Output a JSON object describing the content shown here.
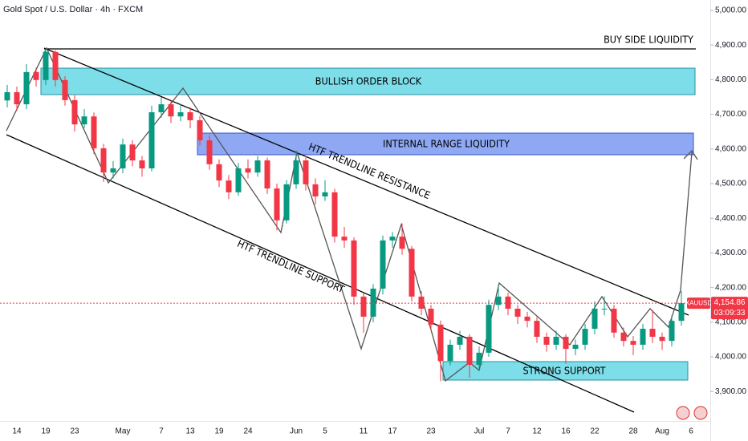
{
  "chart_data": {
    "type": "candlestick",
    "title": "Gold Spot / U.S. Dollar · 4h · FXCM",
    "symbol": "XAUUSD",
    "last_price": {
      "value": 4154.86,
      "label": "4,154.86"
    },
    "countdown": "03:09:33",
    "annotations": [
      "BUY SIDE LIQUIDITY",
      "BULLISH ORDER BLOCK",
      "INTERNAL RANGE LIQUIDITY",
      "HTF TRENDLINE RESISTANCE",
      "HTF TRENDLINE SUPPORT",
      "STRONG SUPPORT"
    ],
    "up_color": "#089981",
    "down_color": "#f23645",
    "categories": [
      null,
      "14",
      null,
      null,
      "19",
      null,
      null,
      "23",
      null,
      null,
      null,
      null,
      "May",
      null,
      null,
      null,
      "7",
      null,
      null,
      "13",
      null,
      null,
      "19",
      null,
      null,
      "24",
      null,
      null,
      null,
      null,
      "Jun",
      null,
      null,
      "5",
      null,
      null,
      null,
      "11",
      null,
      null,
      "17",
      null,
      null,
      null,
      "23",
      null,
      null,
      null,
      null,
      "Jul",
      null,
      null,
      "7",
      null,
      null,
      "12",
      null,
      null,
      "16",
      null,
      null,
      "22",
      null,
      null,
      null,
      "28",
      null,
      null,
      "Aug",
      null,
      null,
      "6"
    ],
    "open": [
      4740,
      4764,
      4729,
      4822,
      4799,
      4880,
      4799,
      4741,
      4671,
      4694,
      4602,
      4532,
      4544,
      4613,
      4567,
      4544,
      4706,
      4729,
      4694,
      4706,
      4683,
      4625,
      4556,
      4509,
      4475,
      4544,
      4532,
      4567,
      4486,
      4394,
      4498,
      4567,
      4498,
      4463,
      4475,
      4347,
      4336,
      4174,
      4116,
      4197,
      4336,
      4347,
      4312,
      4174,
      4139,
      4093,
      3988,
      4035,
      4058,
      3977,
      4012,
      4150,
      4174,
      4139,
      4116,
      4104,
      4058,
      4035,
      4058,
      4023,
      4035,
      4081,
      4139,
      4139,
      4070,
      4046,
      4035,
      4081,
      4058,
      4046,
      4104,
      null
    ],
    "high": [
      4785,
      4780,
      4845,
      4835,
      4890,
      4885,
      4810,
      4755,
      4715,
      4705,
      4615,
      4565,
      4630,
      4625,
      4580,
      4725,
      4750,
      4740,
      4730,
      4720,
      4695,
      4640,
      4570,
      4525,
      4560,
      4570,
      4580,
      4575,
      4500,
      4510,
      4590,
      4580,
      4515,
      4510,
      4485,
      4375,
      4345,
      4185,
      4210,
      4350,
      4360,
      4385,
      4320,
      4190,
      4150,
      4105,
      4050,
      4075,
      4065,
      4030,
      4165,
      4205,
      4185,
      4150,
      4130,
      4115,
      4070,
      4075,
      4065,
      4050,
      4095,
      4160,
      4175,
      4150,
      4085,
      4060,
      4095,
      4135,
      4070,
      4120,
      4190,
      null
    ],
    "low": [
      4720,
      4710,
      4715,
      4780,
      4785,
      4780,
      4725,
      4650,
      4660,
      4585,
      4505,
      4515,
      4530,
      4550,
      4520,
      4535,
      4690,
      4675,
      4680,
      4660,
      4610,
      4540,
      4490,
      4455,
      4465,
      4515,
      4520,
      4470,
      4365,
      4385,
      4485,
      4480,
      4440,
      4450,
      4330,
      4315,
      4150,
      4070,
      4100,
      4180,
      4315,
      4295,
      4160,
      4120,
      4075,
      3930,
      3975,
      4020,
      3940,
      3960,
      4000,
      4135,
      4120,
      4095,
      4085,
      4040,
      4015,
      4020,
      3980,
      4005,
      4020,
      4065,
      4120,
      4055,
      4030,
      4005,
      4020,
      4040,
      4020,
      4030,
      4090,
      null
    ],
    "close": [
      4764,
      4729,
      4822,
      4799,
      4880,
      4799,
      4741,
      4671,
      4694,
      4602,
      4532,
      4544,
      4613,
      4567,
      4544,
      4706,
      4729,
      4694,
      4706,
      4683,
      4625,
      4556,
      4509,
      4475,
      4544,
      4532,
      4567,
      4486,
      4394,
      4498,
      4567,
      4498,
      4463,
      4475,
      4347,
      4336,
      4174,
      4116,
      4197,
      4336,
      4347,
      4312,
      4174,
      4139,
      4093,
      3988,
      4035,
      4058,
      3977,
      4012,
      4150,
      4174,
      4139,
      4116,
      4104,
      4058,
      4035,
      4058,
      4023,
      4035,
      4081,
      4139,
      4139,
      4070,
      4046,
      4035,
      4081,
      4058,
      4046,
      4104,
      4155,
      null
    ],
    "ylim": [
      3815,
      5030
    ],
    "yticks": [
      {
        "value": 3900,
        "label": "3,900.00"
      },
      {
        "value": 4000,
        "label": "4,000.00"
      },
      {
        "value": 4100,
        "label": "4,100.00"
      },
      {
        "value": 4200,
        "label": "4,200.00"
      },
      {
        "value": 4300,
        "label": "4,300.00"
      },
      {
        "value": 4400,
        "label": "4,400.00"
      },
      {
        "value": 4500,
        "label": "4,500.00"
      },
      {
        "value": 4600,
        "label": "4,600.00"
      },
      {
        "value": 4700,
        "label": "4,700.00"
      },
      {
        "value": 4800,
        "label": "4,800.00"
      },
      {
        "value": 4900,
        "label": "4,900.00"
      },
      {
        "value": 5000,
        "label": "5,000.00"
      }
    ]
  }
}
